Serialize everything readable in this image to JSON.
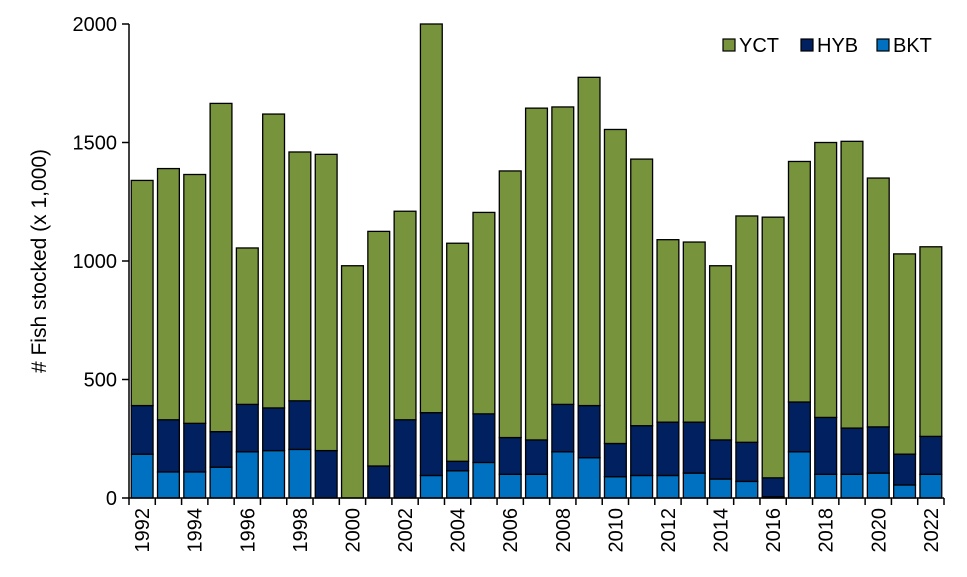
{
  "chart_data": {
    "type": "bar",
    "stacked": true,
    "title": "",
    "xlabel": "",
    "ylabel": "# Fish stocked  (x 1,000)",
    "ylim": [
      0,
      2000
    ],
    "yticks": [
      0,
      500,
      1000,
      1500,
      2000
    ],
    "grid": false,
    "legend_position": "top-right",
    "categories": [
      "1992",
      "1993",
      "1994",
      "1995",
      "1996",
      "1997",
      "1998",
      "1999",
      "2000",
      "2001",
      "2002",
      "2003",
      "2004",
      "2005",
      "2006",
      "2007",
      "2008",
      "2009",
      "2010",
      "2011",
      "2012",
      "2013",
      "2014",
      "2015",
      "2016",
      "2017",
      "2018",
      "2019",
      "2020",
      "2021",
      "2022"
    ],
    "xtick_labels": [
      "1992",
      "",
      "1994",
      "",
      "1996",
      "",
      "1998",
      "",
      "2000",
      "",
      "2002",
      "",
      "2004",
      "",
      "2006",
      "",
      "2008",
      "",
      "2010",
      "",
      "2012",
      "",
      "2014",
      "",
      "2016",
      "",
      "2018",
      "",
      "2020",
      "",
      "2022"
    ],
    "series": [
      {
        "name": "BKT",
        "color": "#0070C0",
        "values": [
          185,
          110,
          110,
          130,
          195,
          200,
          205,
          0,
          0,
          0,
          0,
          95,
          115,
          150,
          100,
          100,
          195,
          170,
          90,
          95,
          95,
          105,
          80,
          70,
          5,
          195,
          100,
          100,
          105,
          55,
          100
        ]
      },
      {
        "name": "HYB",
        "color": "#002060",
        "values": [
          205,
          220,
          205,
          150,
          200,
          180,
          205,
          200,
          0,
          135,
          330,
          265,
          40,
          205,
          155,
          145,
          200,
          220,
          140,
          210,
          225,
          215,
          165,
          165,
          80,
          210,
          240,
          195,
          195,
          130,
          160
        ]
      },
      {
        "name": "YCT",
        "color": "#77933C",
        "values": [
          950,
          1060,
          1050,
          1385,
          660,
          1240,
          1050,
          1250,
          980,
          990,
          880,
          1640,
          920,
          850,
          1125,
          1400,
          1255,
          1385,
          1325,
          1125,
          770,
          760,
          735,
          955,
          1100,
          1015,
          1160,
          1210,
          1050,
          845,
          800
        ]
      }
    ],
    "legend_order": [
      "YCT",
      "HYB",
      "BKT"
    ]
  }
}
